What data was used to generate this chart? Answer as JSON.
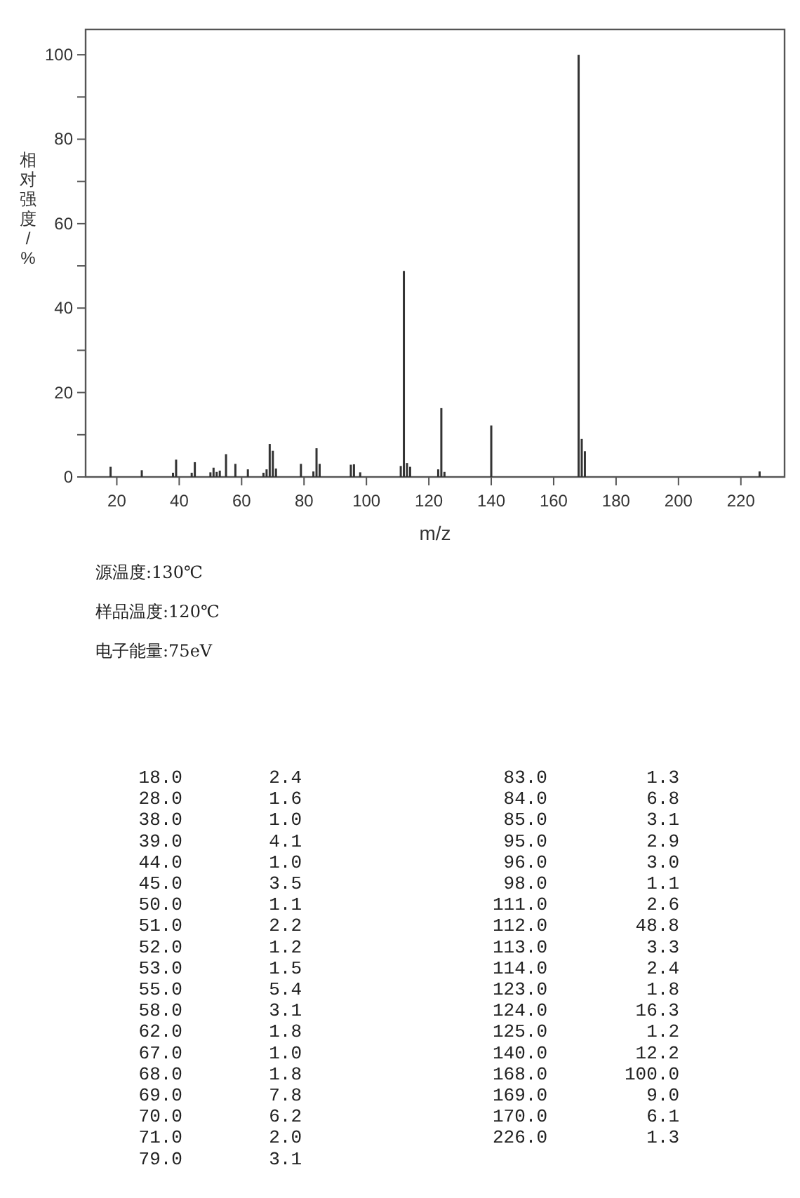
{
  "chart_data": [
    {
      "type": "bar",
      "xlabel": "m/z",
      "ylabel": "相对强度/%",
      "x": [
        18,
        28,
        38,
        39,
        44,
        45,
        50,
        51,
        52,
        53,
        55,
        58,
        62,
        67,
        68,
        69,
        70,
        71,
        79,
        83,
        84,
        85,
        95,
        96,
        98,
        111,
        112,
        113,
        114,
        123,
        124,
        125,
        140,
        168,
        169,
        170,
        226
      ],
      "values": [
        2.4,
        1.6,
        1.0,
        4.1,
        1.0,
        3.5,
        1.1,
        2.2,
        1.2,
        1.5,
        5.4,
        3.1,
        1.8,
        1.0,
        1.8,
        7.8,
        6.2,
        2.0,
        3.1,
        1.3,
        6.8,
        3.1,
        2.9,
        3.0,
        1.1,
        2.6,
        48.8,
        3.3,
        2.4,
        1.8,
        16.3,
        1.2,
        12.2,
        100.0,
        9.0,
        6.1,
        1.3
      ],
      "color": "#333333",
      "xlim": [
        10,
        234
      ],
      "ylim": [
        0,
        106
      ],
      "xticks": [
        20,
        40,
        60,
        80,
        100,
        120,
        140,
        160,
        180,
        200,
        220
      ],
      "yticks": [
        0,
        {
          "value": 10,
          "label": null
        },
        20,
        {
          "value": 30,
          "label": null
        },
        40,
        {
          "value": 50,
          "label": null
        },
        60,
        {
          "value": 70,
          "label": null
        },
        80,
        {
          "value": 90,
          "label": null
        },
        100
      ],
      "annotations": [
        "源温度:130℃",
        "样品温度:120℃",
        "电子能量:75eV"
      ]
    },
    {
      "type": "other",
      "categories": [
        "18.0",
        "28.0",
        "38.0",
        "39.0",
        "44.0",
        "45.0",
        "50.0",
        "51.0",
        "52.0",
        "53.0",
        "55.0",
        "58.0",
        "62.0",
        "67.0",
        "68.0",
        "69.0",
        "70.0",
        "71.0",
        "79.0",
        "83.0",
        "84.0",
        "85.0",
        "95.0",
        "96.0",
        "98.0",
        "111.0",
        "112.0",
        "113.0",
        "114.0",
        "123.0",
        "124.0",
        "125.0",
        "140.0",
        "168.0",
        "169.0",
        "170.0",
        "226.0"
      ],
      "values": [
        2.4,
        1.6,
        1.0,
        4.1,
        1.0,
        3.5,
        1.1,
        2.2,
        1.2,
        1.5,
        5.4,
        3.1,
        1.8,
        1.0,
        1.8,
        7.8,
        6.2,
        2.0,
        3.1,
        1.3,
        6.8,
        3.1,
        2.9,
        3.0,
        1.1,
        2.6,
        48.8,
        3.3,
        2.4,
        1.8,
        16.3,
        1.2,
        12.2,
        100.0,
        9.0,
        6.1,
        1.3
      ],
      "value_labels": [
        "2.4",
        "1.6",
        "1.0",
        "4.1",
        "1.0",
        "3.5",
        "1.1",
        "2.2",
        "1.2",
        "1.5",
        "5.4",
        "3.1",
        "1.8",
        "1.0",
        "1.8",
        "7.8",
        "6.2",
        "2.0",
        "3.1",
        "1.3",
        "6.8",
        "3.1",
        "2.9",
        "3.0",
        "1.1",
        "2.6",
        "48.8",
        "3.3",
        "2.4",
        "1.8",
        "16.3",
        "1.2",
        "12.2",
        "100.0",
        "9.0",
        "6.1",
        "1.3"
      ]
    }
  ]
}
